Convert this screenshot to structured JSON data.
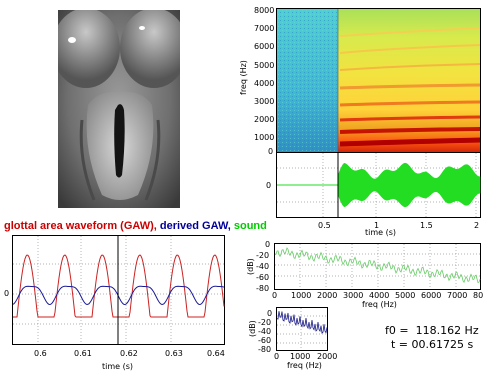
{
  "video_panel": {
    "content": "laryngoscope glottis frame"
  },
  "gaw_panel": {
    "title_part1": "glottal area waveform (GAW),",
    "title_part2": "derived GAW,",
    "title_part3": "sound",
    "title_color1": "#cc0000",
    "title_color2": "#000099",
    "title_color3": "#00cc00",
    "xlabel": "time (s)",
    "yticks": [
      "0"
    ],
    "xticks": [
      "0.6",
      "0.61",
      "0.62",
      "0.63",
      "0.64"
    ]
  },
  "spectrogram_panel": {
    "ylabel": "freq (Hz)",
    "yticks": [
      "8000",
      "7000",
      "6000",
      "5000",
      "4000",
      "3000",
      "2000",
      "1000",
      "0"
    ]
  },
  "sound_panel": {
    "xlabel": "time (s)",
    "yticks": [
      "0"
    ],
    "xticks": [
      "0.5",
      "1",
      "1.5",
      "2"
    ]
  },
  "spectrum_panel": {
    "ylabel": "(dB)",
    "xlabel": "freq (Hz)",
    "yticks": [
      "0",
      "-20",
      "-40",
      "-60",
      "-80"
    ],
    "xticks": [
      "0",
      "1000",
      "2000",
      "3000",
      "4000",
      "5000",
      "6000",
      "7000",
      "80"
    ]
  },
  "small_spectrum_panel": {
    "ylabel": "(dB)",
    "xlabel": "freq (Hz)",
    "yticks": [
      "0",
      "-20",
      "-40",
      "-60",
      "-80"
    ],
    "xticks": [
      "0",
      "1000",
      "2000"
    ]
  },
  "readouts": {
    "f0": "f0 =  118.162 Hz",
    "t": "t = 00.61725 s"
  },
  "colors": {
    "gaw": "#cc2222",
    "derived_gaw": "#1a1a99",
    "sound": "#22dd22",
    "spectrum": "#66cc66",
    "small_spectrum": "#1a1a88"
  }
}
